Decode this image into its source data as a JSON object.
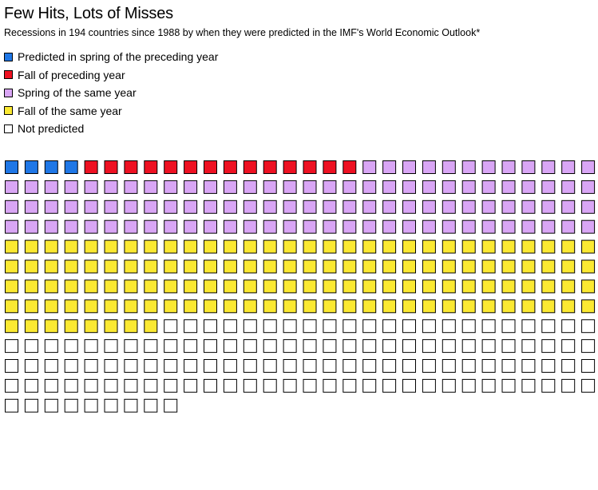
{
  "title": "Few Hits, Lots of Misses",
  "subtitle": "Recessions in 194 countries since 1988 by when they were predicted in the IMF's World Economic Outlook*",
  "chart_data": {
    "type": "waffle",
    "units_per_row": 30,
    "total": 369,
    "categories": [
      {
        "name": "Predicted in spring of the preceding year",
        "count": 4,
        "color": "#1f77e6"
      },
      {
        "name": "Fall of preceding year",
        "count": 14,
        "color": "#ee1122"
      },
      {
        "name": "Spring of the same year",
        "count": 102,
        "color": "#d9a6f5"
      },
      {
        "name": "Fall of the same year",
        "count": 128,
        "color": "#fbe932"
      },
      {
        "name": "Not predicted",
        "count": 121,
        "color": "#ffffff"
      }
    ]
  }
}
